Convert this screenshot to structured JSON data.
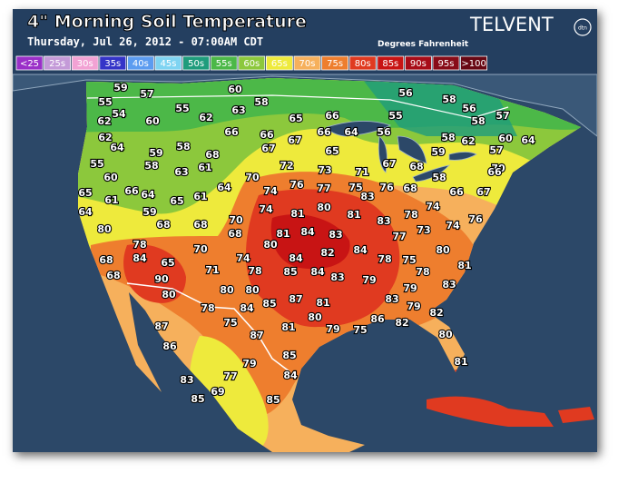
{
  "header": {
    "title": "4\" Morning Soil Temperature",
    "subtitle": "Thursday, Jul 26, 2012 - 07:00AM CDT",
    "units": "Degrees Fahrenheit",
    "brand": "TELVENT",
    "brand_badge": "dtn"
  },
  "legend": [
    {
      "label": "<25",
      "color": "#9a2fc8"
    },
    {
      "label": "25s",
      "color": "#c49ad8"
    },
    {
      "label": "30s",
      "color": "#f2a2d4"
    },
    {
      "label": "35s",
      "color": "#3434c8"
    },
    {
      "label": "40s",
      "color": "#5c9cf0"
    },
    {
      "label": "45s",
      "color": "#7fd4f2"
    },
    {
      "label": "50s",
      "color": "#1f9c7c"
    },
    {
      "label": "55s",
      "color": "#4cb848"
    },
    {
      "label": "60s",
      "color": "#8cc83c"
    },
    {
      "label": "65s",
      "color": "#eeea3c"
    },
    {
      "label": "70s",
      "color": "#f6b05c"
    },
    {
      "label": "75s",
      "color": "#ee7e2e"
    },
    {
      "label": "80s",
      "color": "#e03a20"
    },
    {
      "label": "85s",
      "color": "#c81414"
    },
    {
      "label": "90s",
      "color": "#a80c18"
    },
    {
      "label": "95s",
      "color": "#880c18"
    },
    {
      "label": ">100",
      "color": "#680814"
    }
  ],
  "map": {
    "stations": [
      59,
      57,
      60,
      56,
      55,
      58,
      58,
      56,
      55,
      57,
      54,
      55,
      63,
      65,
      66,
      62,
      60,
      62,
      58,
      66,
      66,
      66,
      64,
      56,
      60,
      64,
      62,
      58,
      62,
      57,
      64,
      58,
      59,
      68,
      67,
      67,
      65,
      59,
      70,
      55,
      58,
      61,
      63,
      72,
      73,
      71,
      67,
      68,
      60,
      70,
      66,
      58,
      65,
      61,
      66,
      64,
      65,
      61,
      64,
      74,
      76,
      77,
      75,
      83,
      76,
      68,
      66,
      67,
      64,
      59,
      74,
      81,
      80,
      81,
      83,
      78,
      74,
      76,
      80,
      68,
      68,
      70,
      81,
      84,
      83,
      77,
      73,
      74,
      68,
      80,
      82,
      84,
      80,
      78,
      70,
      84,
      78,
      75,
      78,
      81,
      68,
      84,
      65,
      74,
      71,
      78,
      85,
      84,
      83,
      79,
      83,
      68,
      90,
      80,
      80,
      87,
      81,
      83,
      79,
      79,
      80,
      78,
      84,
      85,
      82,
      80,
      79,
      86,
      82,
      75,
      87,
      75,
      81,
      80,
      87,
      86,
      85,
      79,
      81,
      84,
      77,
      83,
      69,
      85,
      85
    ]
  }
}
